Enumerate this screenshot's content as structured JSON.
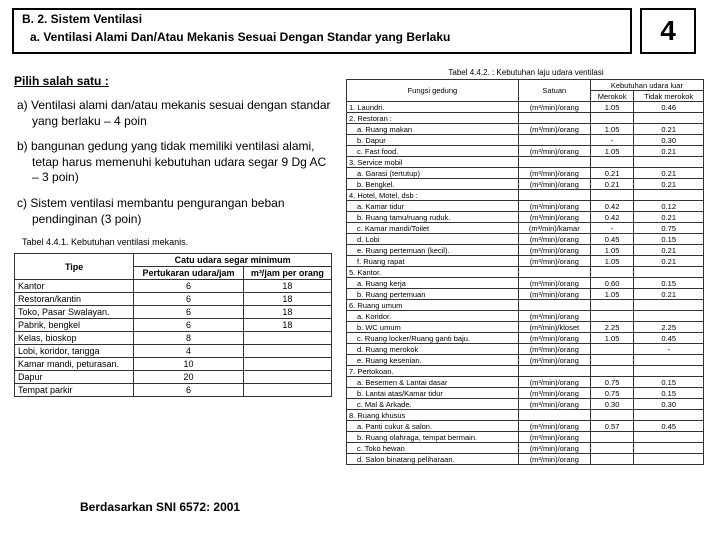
{
  "header": {
    "title": "B. 2. Sistem Ventilasi",
    "subtitle": "a. Ventilasi Alami Dan/Atau Mekanis Sesuai Dengan Standar yang Berlaku",
    "score": "4"
  },
  "left": {
    "pilih": "Pilih salah satu :",
    "opts": [
      "a) Ventilasi alami dan/atau mekanis sesuai dengan standar yang berlaku – 4 poin",
      "b) bangunan gedung yang tidak memiliki ventilasi alami, tetap harus memenuhi kebutuhan udara segar 9 Dg AC – 3 poin)",
      "c) Sistem ventilasi membantu pengurangan beban pendinginan (3 poin)"
    ],
    "tbl_caption": "Tabel 4.4.1. Kebutuhan ventilasi mekanis.",
    "tbl_head": [
      "Tipe",
      "Pertukaran udara/jam",
      "m³/jam per orang"
    ],
    "tbl_head_group": "Catu udara segar minimum",
    "rows": [
      [
        "Kantor",
        "6",
        "18"
      ],
      [
        "Restoran/kantin",
        "6",
        "18"
      ],
      [
        "Toko, Pasar Swalayan.",
        "6",
        "18"
      ],
      [
        "Pabrik, bengkel",
        "6",
        "18"
      ],
      [
        "Kelas, bioskop",
        "8",
        ""
      ],
      [
        "Lobi, koridor, tangga",
        "4",
        ""
      ],
      [
        "Kamar mandi, peturasan.",
        "10",
        ""
      ],
      [
        "Dapur",
        "20",
        ""
      ],
      [
        "Tempat parkir",
        "6",
        ""
      ]
    ]
  },
  "right": {
    "caption": "Tabel 4.4.2. : Kebutuhan laju udara ventilasi",
    "head": {
      "c1": "Fungsi gedung",
      "c2": "Satuan",
      "c3": "Merokok",
      "c4": "Tidak merokok",
      "group": "Kebutuhan udara luar"
    },
    "rows": [
      {
        "t": "1. Laundri.",
        "s": "(m³/min)/orang",
        "a": "1.05",
        "b": "0.46"
      },
      {
        "t": "2. Restoran :",
        "s": "",
        "a": "",
        "b": ""
      },
      {
        "t": "a. Ruang makan",
        "i": 1,
        "s": "(m³/min)/orang",
        "a": "1.05",
        "b": "0.21"
      },
      {
        "t": "b. Dapur",
        "i": 1,
        "s": "",
        "a": "-",
        "b": "0.30"
      },
      {
        "t": "c. Fast food.",
        "i": 1,
        "s": "(m³/min)/orang",
        "a": "1.05",
        "b": "0.21"
      },
      {
        "t": "3. Service mobil",
        "s": "",
        "a": "",
        "b": ""
      },
      {
        "t": "a. Garasi (tertutup)",
        "i": 1,
        "s": "(m³/min)/orang",
        "a": "0.21",
        "b": "0.21"
      },
      {
        "t": "b. Bengkel.",
        "i": 1,
        "s": "(m³/min)/orang",
        "a": "0.21",
        "b": "0.21"
      },
      {
        "t": "4. Hotel, Motel, dsb :",
        "s": "",
        "a": "",
        "b": ""
      },
      {
        "t": "a. Kamar tidur",
        "i": 1,
        "s": "(m³/min)/orang",
        "a": "0.42",
        "b": "0.12"
      },
      {
        "t": "b. Ruang tamu/ruang ruduk.",
        "i": 1,
        "s": "(m³/min)/orang",
        "a": "0.42",
        "b": "0.21"
      },
      {
        "t": "c. Kamar mandi/Toilet",
        "i": 1,
        "s": "(m³/min)/kamar",
        "a": "-",
        "b": "0.75"
      },
      {
        "t": "d. Lobi",
        "i": 1,
        "s": "(m³/min)/orang",
        "a": "0.45",
        "b": "0.15"
      },
      {
        "t": "e. Ruang pertemuan (kecil).",
        "i": 1,
        "s": "(m³/min)/orang",
        "a": "1.05",
        "b": "0.21"
      },
      {
        "t": "f. Ruang rapat",
        "i": 1,
        "s": "(m³/min)/orang",
        "a": "1.05",
        "b": "0.21"
      },
      {
        "t": "5. Kantor.",
        "s": "",
        "a": "",
        "b": ""
      },
      {
        "t": "a. Ruang kerja",
        "i": 1,
        "s": "(m³/min)/orang",
        "a": "0.60",
        "b": "0.15"
      },
      {
        "t": "b. Ruang pertemuan",
        "i": 1,
        "s": "(m³/min)/orang",
        "a": "1.05",
        "b": "0.21"
      },
      {
        "t": "6. Ruang umum",
        "s": "",
        "a": "",
        "b": ""
      },
      {
        "t": "a. Koridor.",
        "i": 1,
        "s": "(m³/min)/orang",
        "a": "",
        "b": ""
      },
      {
        "t": "b. WC umum",
        "i": 1,
        "s": "(m³/min)/kloset",
        "a": "2.25",
        "b": "2.25"
      },
      {
        "t": "c. Ruang locker/Ruang ganti baju.",
        "i": 1,
        "s": "(m³/min)/orang",
        "a": "1.05",
        "b": "0.45"
      },
      {
        "t": "d. Ruang merokok",
        "i": 1,
        "s": "(m³/min)/orang",
        "a": "",
        "b": "-"
      },
      {
        "t": "e. Ruang kesenian.",
        "i": 1,
        "s": "(m³/min)/orang",
        "a": "",
        "b": ""
      },
      {
        "t": "7. Pertokoan.",
        "s": "",
        "a": "",
        "b": ""
      },
      {
        "t": "a. Besemen & Lantai dasar",
        "i": 1,
        "s": "(m³/min)/orang",
        "a": "0.75",
        "b": "0.15"
      },
      {
        "t": "b. Lantai atas/Kamar tidur",
        "i": 1,
        "s": "(m³/min)/orang",
        "a": "0.75",
        "b": "0.15"
      },
      {
        "t": "c. Mal & Arkade.",
        "i": 1,
        "s": "(m³/min)/orang",
        "a": "0.30",
        "b": "0.30"
      },
      {
        "t": "8. Ruang khusus",
        "s": "",
        "a": "",
        "b": ""
      },
      {
        "t": "a. Panti cukur & salon.",
        "i": 1,
        "s": "(m³/min)/orang",
        "a": "0.57",
        "b": "0.45"
      },
      {
        "t": "b. Ruang olahraga, tempat bermain.",
        "i": 1,
        "s": "(m³/min)/orang",
        "a": "",
        "b": ""
      },
      {
        "t": "c. Toko hewan",
        "i": 1,
        "s": "(m³/min)/orang",
        "a": "",
        "b": ""
      },
      {
        "t": "d. Salon binatang peliharaan.",
        "i": 1,
        "s": "(m³/min)/orang",
        "a": "",
        "b": ""
      }
    ]
  },
  "footer": "Berdasarkan SNI 6572: 2001"
}
